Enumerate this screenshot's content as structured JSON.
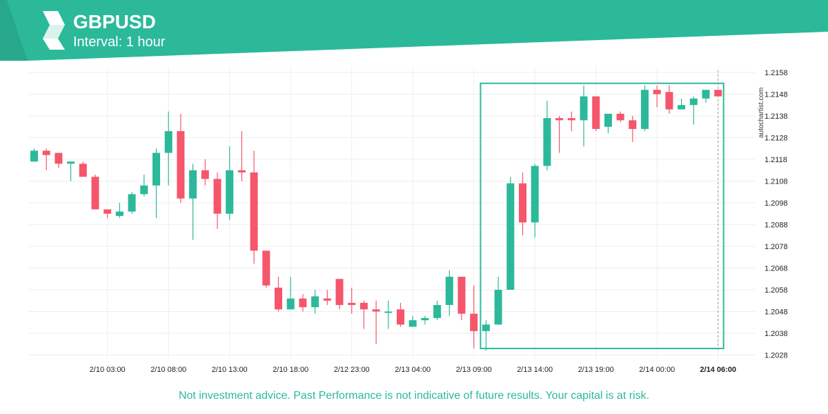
{
  "header": {
    "symbol": "GBPUSD",
    "interval": "Interval: 1 hour"
  },
  "watermark": "autochartist.com",
  "disclaimer": "Not investment advice. Past Performance is not indicative of future results. Your capital is at risk.",
  "colors": {
    "brand": "#2bb99a",
    "bull": "#2bb99a",
    "bear": "#f5566b"
  },
  "chart_data": {
    "type": "candlestick",
    "title": "GBPUSD",
    "ylim": [
      1.2026,
      1.2161
    ],
    "yticks": [
      "1.2158",
      "1.2148",
      "1.2138",
      "1.2128",
      "1.2118",
      "1.2108",
      "1.2098",
      "1.2088",
      "1.2078",
      "1.2068",
      "1.2058",
      "1.2048",
      "1.2038",
      "1.2028"
    ],
    "xticks": [
      {
        "label": "2/10 03:00",
        "index": 6
      },
      {
        "label": "2/10 08:00",
        "index": 11
      },
      {
        "label": "2/10 13:00",
        "index": 16
      },
      {
        "label": "2/10 18:00",
        "index": 21
      },
      {
        "label": "2/12 23:00",
        "index": 26
      },
      {
        "label": "2/13 04:00",
        "index": 31
      },
      {
        "label": "2/13 09:00",
        "index": 36
      },
      {
        "label": "2/13 14:00",
        "index": 41
      },
      {
        "label": "2/13 19:00",
        "index": 46
      },
      {
        "label": "2/14 00:00",
        "index": 51
      },
      {
        "label": "2/14 06:00",
        "index": 56,
        "bold": true
      }
    ],
    "candles": [
      {
        "o": 1.2117,
        "h": 1.2123,
        "l": 1.2117,
        "c": 1.2122
      },
      {
        "o": 1.2122,
        "h": 1.2123,
        "l": 1.2113,
        "c": 1.212
      },
      {
        "o": 1.2121,
        "h": 1.2121,
        "l": 1.2114,
        "c": 1.2116
      },
      {
        "o": 1.2116,
        "h": 1.2117,
        "l": 1.2108,
        "c": 1.2117
      },
      {
        "o": 1.2116,
        "h": 1.2117,
        "l": 1.211,
        "c": 1.211
      },
      {
        "o": 1.211,
        "h": 1.2111,
        "l": 1.2095,
        "c": 1.2095
      },
      {
        "o": 1.2095,
        "h": 1.2095,
        "l": 1.2091,
        "c": 1.2093
      },
      {
        "o": 1.2092,
        "h": 1.2098,
        "l": 1.2091,
        "c": 1.2094
      },
      {
        "o": 1.2094,
        "h": 1.2103,
        "l": 1.2093,
        "c": 1.2102
      },
      {
        "o": 1.2102,
        "h": 1.2111,
        "l": 1.2101,
        "c": 1.2106
      },
      {
        "o": 1.2106,
        "h": 1.2123,
        "l": 1.2091,
        "c": 1.2121
      },
      {
        "o": 1.2121,
        "h": 1.214,
        "l": 1.2106,
        "c": 1.2131
      },
      {
        "o": 1.2131,
        "h": 1.2139,
        "l": 1.2098,
        "c": 1.21
      },
      {
        "o": 1.21,
        "h": 1.2116,
        "l": 1.2081,
        "c": 1.2113
      },
      {
        "o": 1.2113,
        "h": 1.2118,
        "l": 1.2106,
        "c": 1.2109
      },
      {
        "o": 1.2109,
        "h": 1.2112,
        "l": 1.2086,
        "c": 1.2093
      },
      {
        "o": 1.2093,
        "h": 1.2124,
        "l": 1.209,
        "c": 1.2113
      },
      {
        "o": 1.2113,
        "h": 1.2131,
        "l": 1.2108,
        "c": 1.2112
      },
      {
        "o": 1.2112,
        "h": 1.2122,
        "l": 1.207,
        "c": 1.2076
      },
      {
        "o": 1.2076,
        "h": 1.2076,
        "l": 1.2059,
        "c": 1.206
      },
      {
        "o": 1.2059,
        "h": 1.2064,
        "l": 1.2048,
        "c": 1.2049
      },
      {
        "o": 1.2049,
        "h": 1.2064,
        "l": 1.2049,
        "c": 1.2054
      },
      {
        "o": 1.2054,
        "h": 1.2056,
        "l": 1.2048,
        "c": 1.205
      },
      {
        "o": 1.205,
        "h": 1.2058,
        "l": 1.2047,
        "c": 1.2055
      },
      {
        "o": 1.2054,
        "h": 1.2058,
        "l": 1.2051,
        "c": 1.2053
      },
      {
        "o": 1.2063,
        "h": 1.2063,
        "l": 1.2049,
        "c": 1.2051
      },
      {
        "o": 1.2052,
        "h": 1.2059,
        "l": 1.2047,
        "c": 1.2051
      },
      {
        "o": 1.2052,
        "h": 1.2053,
        "l": 1.204,
        "c": 1.2049
      },
      {
        "o": 1.2049,
        "h": 1.2053,
        "l": 1.2033,
        "c": 1.2048
      },
      {
        "o": 1.2048,
        "h": 1.2053,
        "l": 1.204,
        "c": 1.2048
      },
      {
        "o": 1.2049,
        "h": 1.2052,
        "l": 1.2041,
        "c": 1.2042
      },
      {
        "o": 1.2041,
        "h": 1.2046,
        "l": 1.2041,
        "c": 1.2044
      },
      {
        "o": 1.2044,
        "h": 1.2046,
        "l": 1.2042,
        "c": 1.2045
      },
      {
        "o": 1.2045,
        "h": 1.2053,
        "l": 1.2044,
        "c": 1.2051
      },
      {
        "o": 1.2051,
        "h": 1.2067,
        "l": 1.2046,
        "c": 1.2064
      },
      {
        "o": 1.2064,
        "h": 1.2064,
        "l": 1.2044,
        "c": 1.2047
      },
      {
        "o": 1.2047,
        "h": 1.206,
        "l": 1.2031,
        "c": 1.2039
      },
      {
        "o": 1.2039,
        "h": 1.2044,
        "l": 1.203,
        "c": 1.2042
      },
      {
        "o": 1.2042,
        "h": 1.2064,
        "l": 1.2042,
        "c": 1.2058
      },
      {
        "o": 1.2058,
        "h": 1.211,
        "l": 1.2058,
        "c": 1.2107
      },
      {
        "o": 1.2107,
        "h": 1.2112,
        "l": 1.2083,
        "c": 1.2089
      },
      {
        "o": 1.2089,
        "h": 1.2116,
        "l": 1.2082,
        "c": 1.2115
      },
      {
        "o": 1.2115,
        "h": 1.2145,
        "l": 1.2113,
        "c": 1.2137
      },
      {
        "o": 1.2137,
        "h": 1.2138,
        "l": 1.2121,
        "c": 1.2136
      },
      {
        "o": 1.2137,
        "h": 1.214,
        "l": 1.2131,
        "c": 1.2136
      },
      {
        "o": 1.2136,
        "h": 1.2152,
        "l": 1.2124,
        "c": 1.2147
      },
      {
        "o": 1.2147,
        "h": 1.2147,
        "l": 1.2131,
        "c": 1.2132
      },
      {
        "o": 1.2133,
        "h": 1.2139,
        "l": 1.213,
        "c": 1.2139
      },
      {
        "o": 1.2139,
        "h": 1.214,
        "l": 1.2135,
        "c": 1.2136
      },
      {
        "o": 1.2136,
        "h": 1.2138,
        "l": 1.2126,
        "c": 1.2132
      },
      {
        "o": 1.2132,
        "h": 1.2152,
        "l": 1.2131,
        "c": 1.215
      },
      {
        "o": 1.215,
        "h": 1.2152,
        "l": 1.2142,
        "c": 1.2148
      },
      {
        "o": 1.2149,
        "h": 1.2152,
        "l": 1.2139,
        "c": 1.2141
      },
      {
        "o": 1.2141,
        "h": 1.2146,
        "l": 1.2141,
        "c": 1.2143
      },
      {
        "o": 1.2143,
        "h": 1.2147,
        "l": 1.2134,
        "c": 1.2146
      },
      {
        "o": 1.2146,
        "h": 1.215,
        "l": 1.2144,
        "c": 1.215
      },
      {
        "o": 1.215,
        "h": 1.215,
        "l": 1.2147,
        "c": 1.2147
      }
    ],
    "pattern_box": {
      "start_index": 37,
      "end_index": 56,
      "top": 1.2153,
      "bottom": 1.2031
    }
  }
}
